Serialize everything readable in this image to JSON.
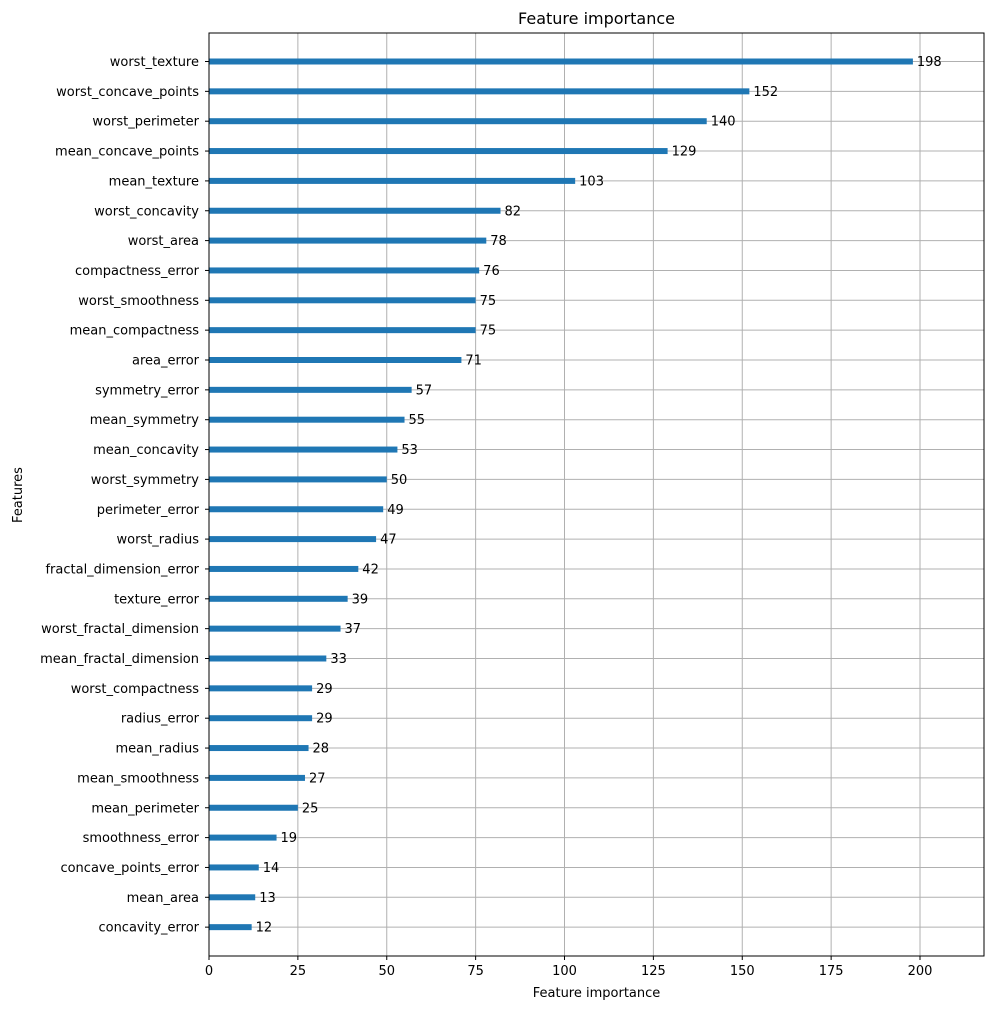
{
  "chart_data": {
    "type": "bar",
    "orientation": "horizontal",
    "title": "Feature importance",
    "xlabel": "Feature importance",
    "ylabel": "Features",
    "xlim": [
      0,
      218
    ],
    "xticks": [
      0,
      25,
      50,
      75,
      100,
      125,
      150,
      175,
      200
    ],
    "grid": true,
    "bar_color": "#1f77b4",
    "categories": [
      "worst_texture",
      "worst_concave_points",
      "worst_perimeter",
      "mean_concave_points",
      "mean_texture",
      "worst_concavity",
      "worst_area",
      "compactness_error",
      "worst_smoothness",
      "mean_compactness",
      "area_error",
      "symmetry_error",
      "mean_symmetry",
      "mean_concavity",
      "worst_symmetry",
      "perimeter_error",
      "worst_radius",
      "fractal_dimension_error",
      "texture_error",
      "worst_fractal_dimension",
      "mean_fractal_dimension",
      "worst_compactness",
      "radius_error",
      "mean_radius",
      "mean_smoothness",
      "mean_perimeter",
      "smoothness_error",
      "concave_points_error",
      "mean_area",
      "concavity_error"
    ],
    "values": [
      198,
      152,
      140,
      129,
      103,
      82,
      78,
      76,
      75,
      75,
      71,
      57,
      55,
      53,
      50,
      49,
      47,
      42,
      39,
      37,
      33,
      29,
      29,
      28,
      27,
      25,
      19,
      14,
      13,
      12
    ]
  }
}
